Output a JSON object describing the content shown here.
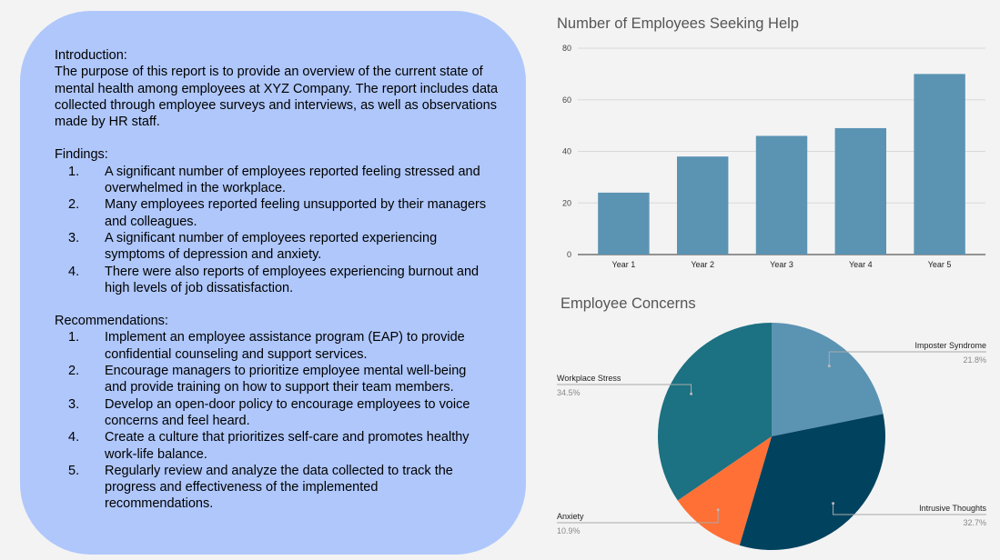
{
  "report": {
    "intro_heading": "Introduction:",
    "intro_text": "The purpose of this report is to provide an overview of the current state of mental health among employees at XYZ Company. The report includes data collected through employee surveys and interviews, as well as observations made by HR staff.",
    "findings_heading": "Findings:",
    "findings": [
      {
        "num": "1.",
        "text": "A significant number of employees reported feeling stressed and overwhelmed in the workplace."
      },
      {
        "num": "2.",
        "text": "Many employees reported feeling unsupported by their managers and colleagues."
      },
      {
        "num": "3.",
        "text": "A significant number of employees reported experiencing symptoms of depression and anxiety."
      },
      {
        "num": "4.",
        "text": "There were also reports of employees experiencing burnout and high levels of job dissatisfaction."
      }
    ],
    "recommendations_heading": "Recommendations:",
    "recommendations": [
      {
        "num": "1.",
        "text": "Implement an employee assistance program (EAP) to provide confidential counseling and support services."
      },
      {
        "num": "2.",
        "text": "Encourage managers to prioritize employee mental well-being and provide training on how to support their team members."
      },
      {
        "num": "3.",
        "text": "Develop an open-door policy to encourage employees to voice concerns and feel heard."
      },
      {
        "num": "4.",
        "text": "Create a culture that prioritizes self-care and promotes healthy work-life balance."
      },
      {
        "num": "5.",
        "text": "Regularly review and analyze the data collected to track the progress and effectiveness of the implemented recommendations."
      }
    ]
  },
  "chart_data": [
    {
      "type": "bar",
      "title": "Number of Employees Seeking Help",
      "categories": [
        "Year 1",
        "Year 2",
        "Year 3",
        "Year 4",
        "Year 5"
      ],
      "values": [
        24,
        38,
        46,
        49,
        70
      ],
      "ylim": [
        0,
        80
      ],
      "yticks": [
        0,
        20,
        40,
        60,
        80
      ],
      "grid": true,
      "color": "#5b93b3"
    },
    {
      "type": "pie",
      "title": "Employee Concerns",
      "slices": [
        {
          "label": "Imposter Syndrome",
          "value": 21.8,
          "pct_label": "21.8%",
          "color": "#5b93b3"
        },
        {
          "label": "Intrusive Thoughts",
          "value": 32.7,
          "pct_label": "32.7%",
          "color": "#01425f"
        },
        {
          "label": "Anxiety",
          "value": 10.9,
          "pct_label": "10.9%",
          "color": "#ff7036"
        },
        {
          "label": "Workplace Stress",
          "value": 34.5,
          "pct_label": "34.5%",
          "color": "#1c7182"
        }
      ]
    }
  ]
}
